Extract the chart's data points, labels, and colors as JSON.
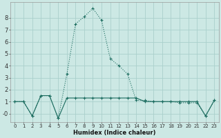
{
  "xlabel": "Humidex (Indice chaleur)",
  "bg_color": "#cce8e4",
  "grid_color": "#aad0cc",
  "line_color": "#1a6b5e",
  "x_ticks": [
    0,
    1,
    2,
    3,
    4,
    5,
    6,
    7,
    8,
    9,
    10,
    11,
    12,
    13,
    14,
    15,
    16,
    17,
    18,
    19,
    20,
    21,
    22,
    23
  ],
  "y_ticks": [
    0,
    1,
    2,
    3,
    4,
    5,
    6,
    7,
    8
  ],
  "ylim": [
    -0.7,
    9.3
  ],
  "xlim": [
    -0.5,
    23.5
  ],
  "curve1_x": [
    0,
    1,
    2,
    3,
    4,
    5,
    6,
    7,
    8,
    9,
    10,
    11,
    12,
    13,
    14,
    15,
    16,
    17,
    18,
    19,
    20,
    21,
    22,
    23
  ],
  "curve1_y": [
    1.0,
    1.0,
    -0.2,
    1.5,
    1.5,
    -0.4,
    3.3,
    7.5,
    8.1,
    8.8,
    7.8,
    4.6,
    4.0,
    3.3,
    1.1,
    1.1,
    1.0,
    1.0,
    1.0,
    0.9,
    0.9,
    0.9,
    -0.2,
    1.1
  ],
  "curve2_x": [
    0,
    1,
    2,
    3,
    4,
    5,
    6,
    7,
    8,
    9,
    10,
    11,
    12,
    13,
    14,
    15,
    16,
    17,
    18,
    19,
    20,
    21,
    22,
    23
  ],
  "curve2_y": [
    1.0,
    1.0,
    -0.2,
    1.5,
    1.5,
    -0.4,
    1.3,
    1.3,
    1.3,
    1.3,
    1.3,
    1.3,
    1.3,
    1.3,
    1.3,
    1.0,
    1.0,
    1.0,
    1.0,
    1.0,
    1.0,
    1.0,
    -0.2,
    1.1
  ],
  "xlabel_fontsize": 6.0,
  "tick_fontsize_x": 5.0,
  "tick_fontsize_y": 6.0
}
